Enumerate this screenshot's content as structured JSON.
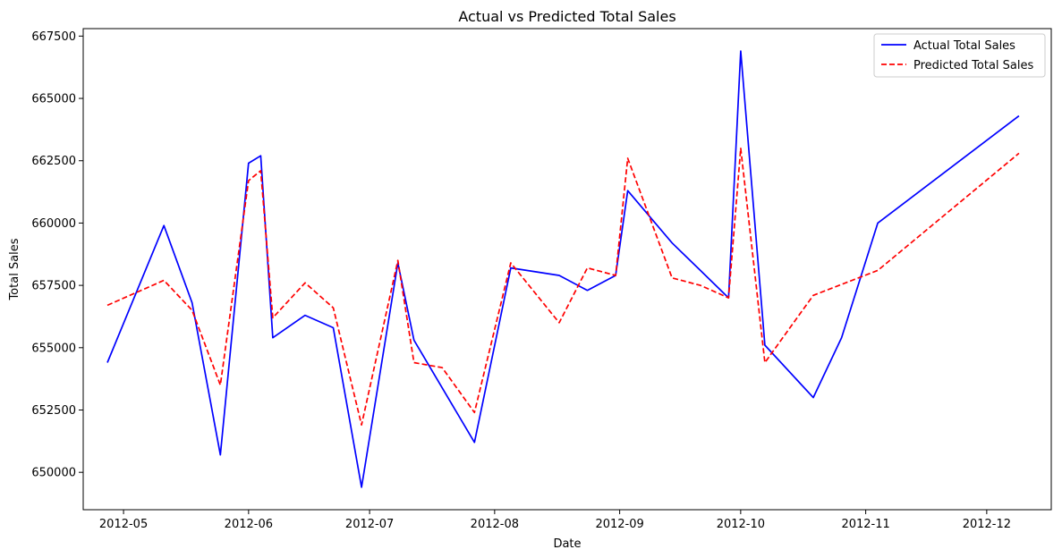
{
  "chart_data": {
    "type": "line",
    "title": "Actual vs Predicted Total Sales",
    "xlabel": "Date",
    "ylabel": "Total Sales",
    "x_ticks": [
      "2012-05",
      "2012-06",
      "2012-07",
      "2012-08",
      "2012-09",
      "2012-10",
      "2012-11",
      "2012-12"
    ],
    "y_ticks": [
      650000,
      652500,
      655000,
      657500,
      660000,
      662500,
      665000,
      667500
    ],
    "xlim": [
      "2012-04-21",
      "2012-12-17"
    ],
    "ylim": [
      648500,
      667800
    ],
    "grid": false,
    "legend_position": "top-right",
    "series": [
      {
        "name": "Actual Total Sales",
        "color": "#0000ff",
        "style": "solid",
        "points": [
          [
            "2012-04-27",
            654400
          ],
          [
            "2012-05-11",
            659900
          ],
          [
            "2012-05-18",
            656800
          ],
          [
            "2012-05-25",
            650700
          ],
          [
            "2012-06-01",
            662400
          ],
          [
            "2012-06-04",
            662700
          ],
          [
            "2012-06-07",
            655400
          ],
          [
            "2012-06-15",
            656300
          ],
          [
            "2012-06-22",
            655800
          ],
          [
            "2012-06-29",
            649400
          ],
          [
            "2012-07-08",
            658400
          ],
          [
            "2012-07-12",
            655300
          ],
          [
            "2012-07-27",
            651200
          ],
          [
            "2012-08-05",
            658200
          ],
          [
            "2012-08-17",
            657900
          ],
          [
            "2012-08-24",
            657300
          ],
          [
            "2012-08-31",
            657900
          ],
          [
            "2012-09-03",
            661300
          ],
          [
            "2012-09-14",
            659200
          ],
          [
            "2012-09-21",
            658100
          ],
          [
            "2012-09-28",
            657000
          ],
          [
            "2012-10-01",
            666900
          ],
          [
            "2012-10-07",
            655100
          ],
          [
            "2012-10-19",
            653000
          ],
          [
            "2012-10-26",
            655400
          ],
          [
            "2012-11-04",
            660000
          ],
          [
            "2012-12-09",
            664300
          ]
        ]
      },
      {
        "name": "Predicted Total Sales",
        "color": "#ff0000",
        "style": "dashed",
        "points": [
          [
            "2012-04-27",
            656700
          ],
          [
            "2012-05-11",
            657700
          ],
          [
            "2012-05-18",
            656500
          ],
          [
            "2012-05-25",
            653500
          ],
          [
            "2012-06-01",
            661700
          ],
          [
            "2012-06-04",
            662100
          ],
          [
            "2012-06-07",
            656200
          ],
          [
            "2012-06-15",
            657600
          ],
          [
            "2012-06-22",
            656600
          ],
          [
            "2012-06-29",
            651900
          ],
          [
            "2012-07-08",
            658500
          ],
          [
            "2012-07-12",
            654400
          ],
          [
            "2012-07-19",
            654200
          ],
          [
            "2012-07-27",
            652400
          ],
          [
            "2012-08-05",
            658400
          ],
          [
            "2012-08-17",
            656000
          ],
          [
            "2012-08-24",
            658200
          ],
          [
            "2012-08-31",
            657900
          ],
          [
            "2012-09-03",
            662600
          ],
          [
            "2012-09-14",
            657800
          ],
          [
            "2012-09-21",
            657500
          ],
          [
            "2012-09-28",
            657000
          ],
          [
            "2012-10-01",
            663000
          ],
          [
            "2012-10-07",
            654400
          ],
          [
            "2012-10-19",
            657100
          ],
          [
            "2012-11-04",
            658100
          ],
          [
            "2012-12-09",
            662800
          ]
        ]
      }
    ]
  }
}
